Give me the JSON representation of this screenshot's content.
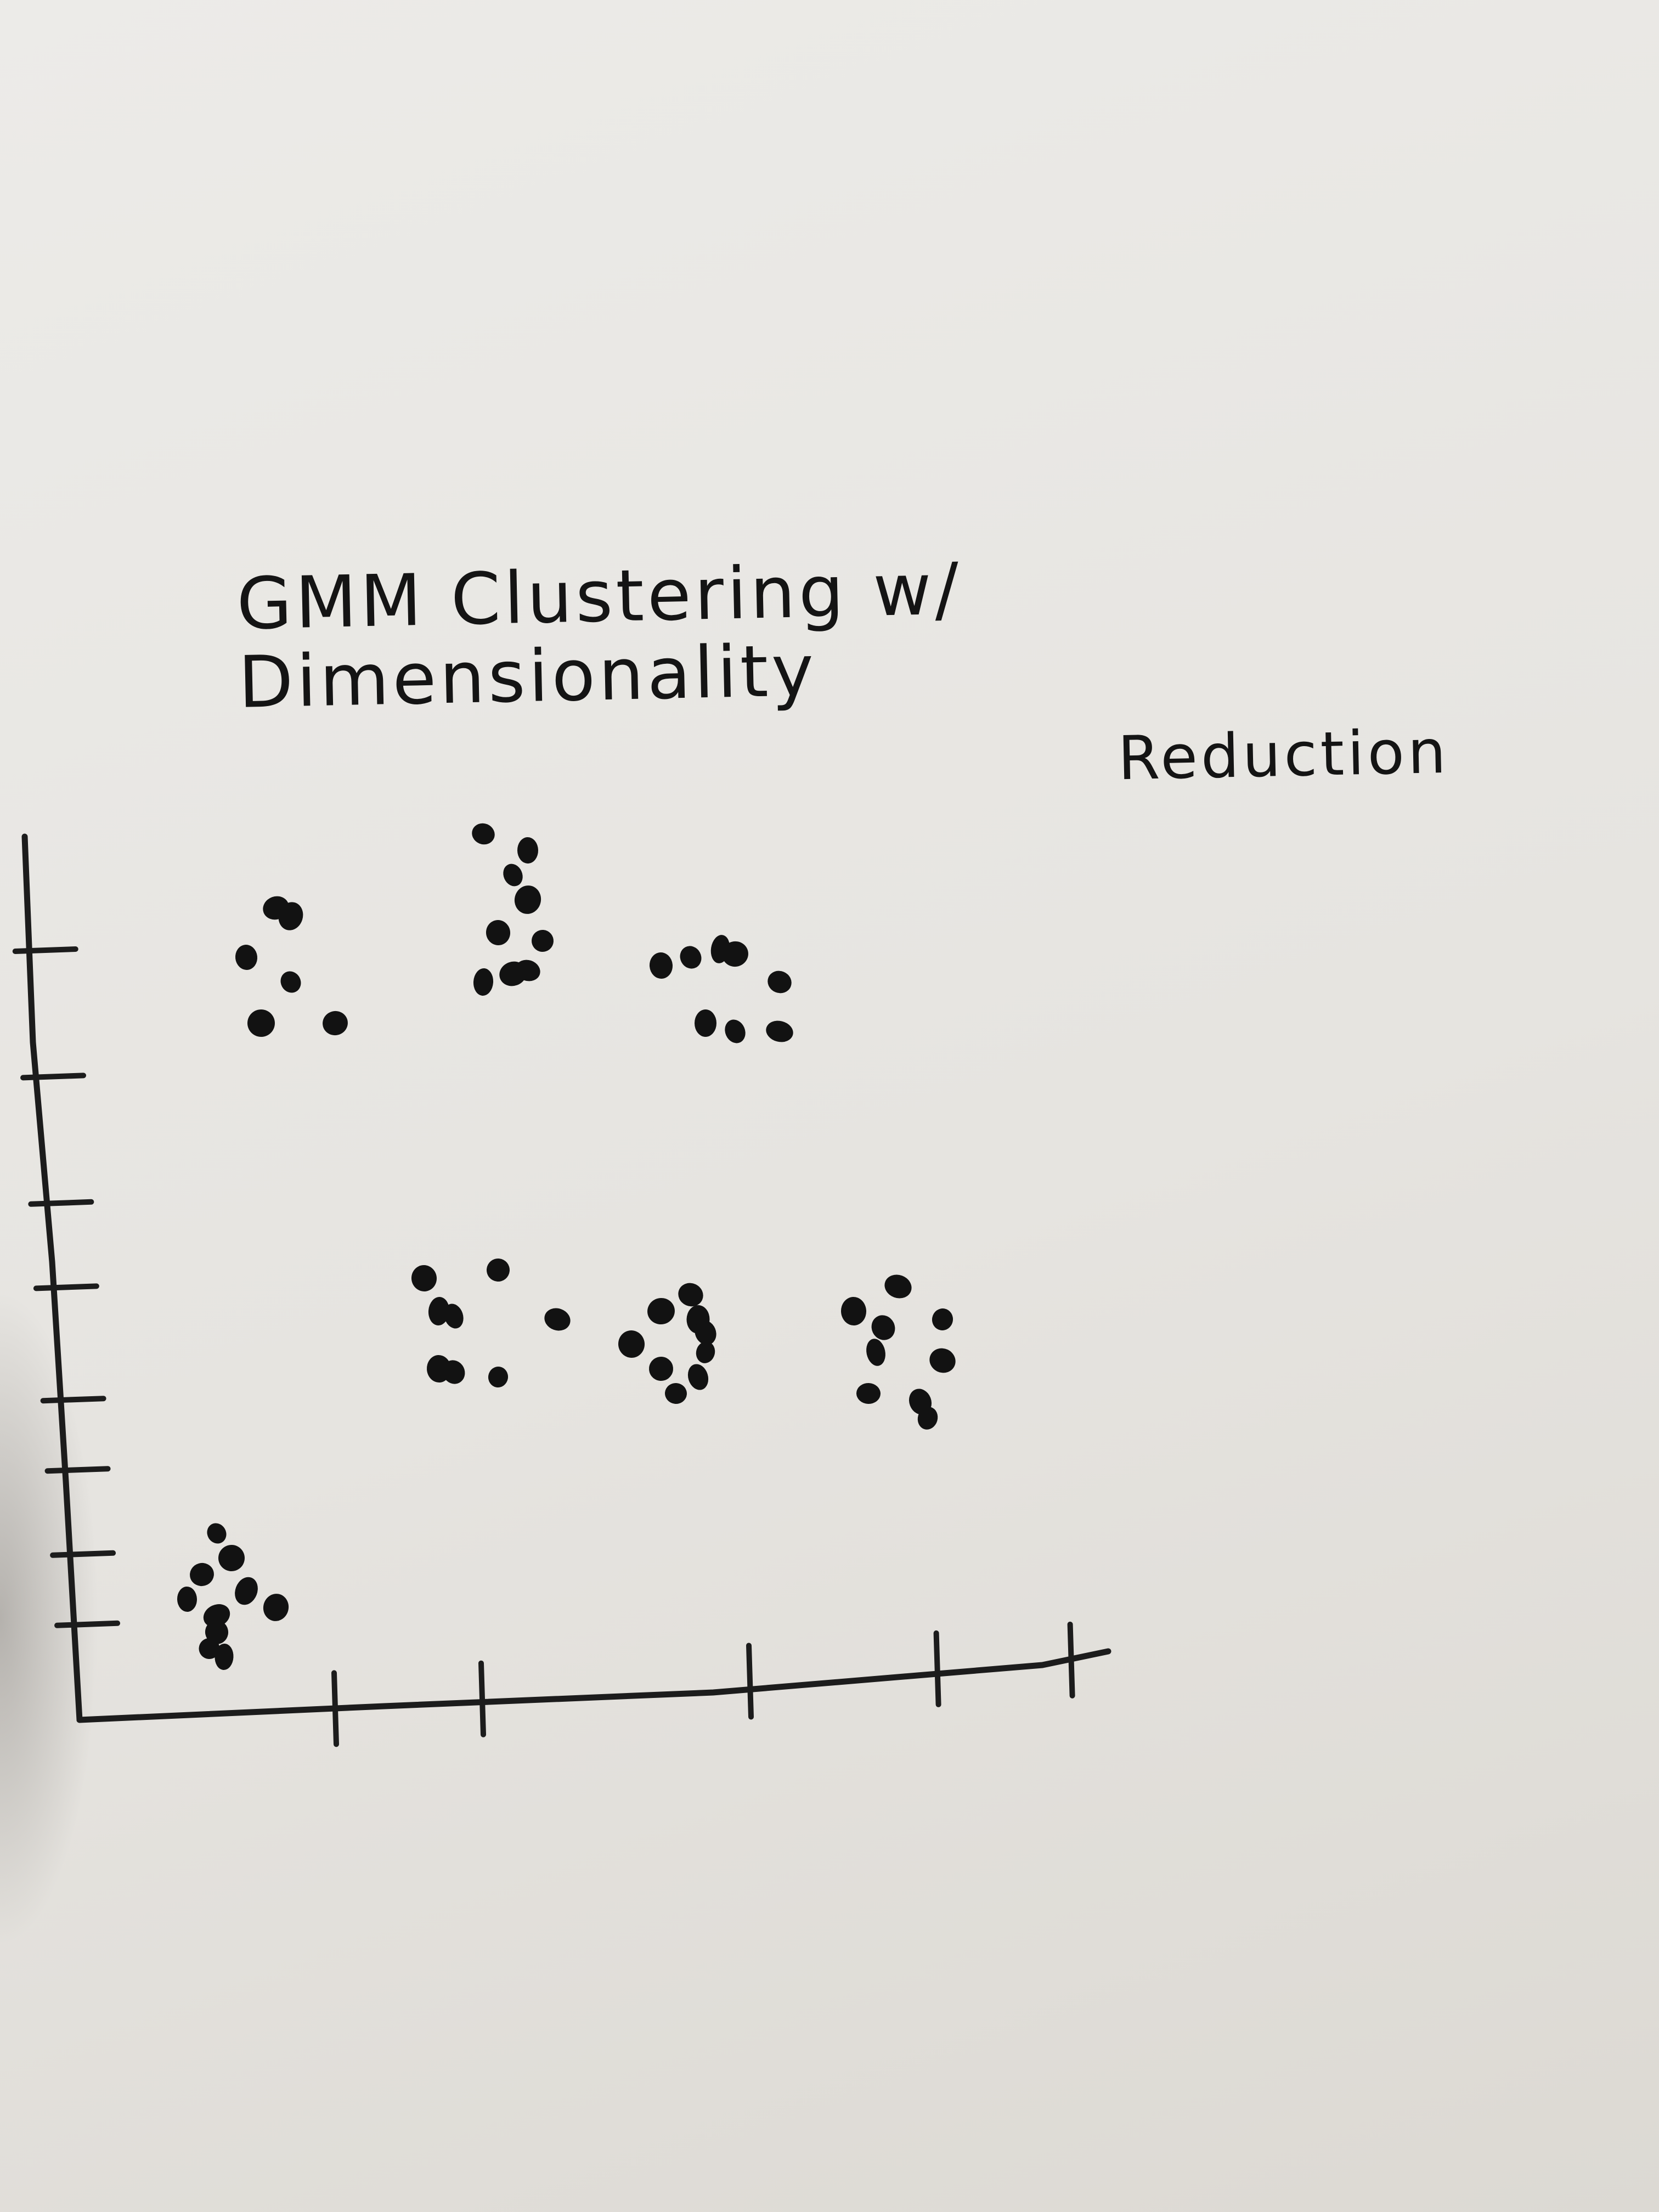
{
  "chart_data": {
    "type": "scatter",
    "title_line1": "GMM Clustering w/ Dimensionality",
    "title_line2": "Reduction",
    "xlabel": "",
    "ylabel": "",
    "xlim": [
      0,
      7
    ],
    "ylim": [
      0,
      7
    ],
    "x_ticks": [
      1,
      3,
      5,
      6.4,
      7.4
    ],
    "y_ticks": [
      0.2,
      0.7,
      1.3,
      1.8,
      2.6,
      3.2,
      4.1,
      5.0
    ],
    "grid": false,
    "legend": "none",
    "points": [
      [
        1.0,
        1.2
      ],
      [
        1.1,
        1.05
      ],
      [
        0.9,
        0.95
      ],
      [
        1.2,
        0.85
      ],
      [
        0.8,
        0.8
      ],
      [
        1.0,
        0.7
      ],
      [
        1.4,
        0.75
      ],
      [
        1.0,
        0.6
      ],
      [
        0.95,
        0.5
      ],
      [
        1.05,
        0.45
      ],
      [
        1.4,
        5.0
      ],
      [
        1.5,
        4.95
      ],
      [
        1.2,
        4.7
      ],
      [
        1.5,
        4.55
      ],
      [
        1.3,
        4.3
      ],
      [
        1.8,
        4.3
      ],
      [
        2.8,
        5.45
      ],
      [
        3.1,
        5.35
      ],
      [
        3.0,
        5.2
      ],
      [
        3.1,
        5.05
      ],
      [
        2.9,
        4.85
      ],
      [
        3.2,
        4.8
      ],
      [
        2.8,
        4.55
      ],
      [
        3.0,
        4.6
      ],
      [
        3.1,
        4.62
      ],
      [
        4.0,
        4.65
      ],
      [
        4.2,
        4.7
      ],
      [
        4.4,
        4.75
      ],
      [
        4.5,
        4.72
      ],
      [
        4.8,
        4.55
      ],
      [
        4.3,
        4.3
      ],
      [
        4.5,
        4.25
      ],
      [
        4.8,
        4.25
      ],
      [
        2.4,
        2.75
      ],
      [
        2.9,
        2.8
      ],
      [
        2.5,
        2.55
      ],
      [
        2.6,
        2.52
      ],
      [
        3.3,
        2.5
      ],
      [
        2.5,
        2.2
      ],
      [
        2.6,
        2.18
      ],
      [
        2.9,
        2.15
      ],
      [
        4.0,
        2.55
      ],
      [
        4.2,
        2.65
      ],
      [
        4.25,
        2.5
      ],
      [
        4.3,
        2.42
      ],
      [
        4.3,
        2.3
      ],
      [
        3.8,
        2.35
      ],
      [
        4.0,
        2.2
      ],
      [
        4.1,
        2.05
      ],
      [
        4.25,
        2.15
      ],
      [
        5.6,
        2.7
      ],
      [
        5.3,
        2.55
      ],
      [
        5.5,
        2.45
      ],
      [
        5.9,
        2.5
      ],
      [
        5.45,
        2.3
      ],
      [
        5.9,
        2.25
      ],
      [
        5.4,
        2.05
      ],
      [
        5.75,
        2.0
      ],
      [
        5.8,
        1.9
      ]
    ]
  }
}
